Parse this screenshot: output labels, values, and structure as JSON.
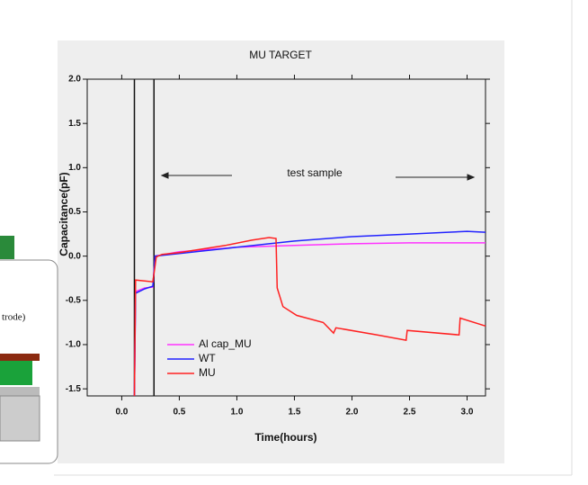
{
  "chart_data": {
    "type": "line",
    "title": "MU TARGET",
    "x_label": "Time(hours)",
    "y_label": "Capacitance(pF)",
    "annotation": "test sample",
    "vlines": [
      0.11,
      0.28
    ],
    "xlim": [
      -0.3,
      3.16
    ],
    "ylim": [
      -1.58,
      2.0
    ],
    "xticks": [
      {
        "value": 0,
        "label": "0.0"
      },
      0.5,
      {
        "value": 1,
        "label": "1.0"
      },
      1.5,
      {
        "value": 2,
        "label": "2.0"
      },
      2.5,
      {
        "value": 3,
        "label": "3.0"
      }
    ],
    "yticks": [
      {
        "value": -1.5,
        "label": "-1.5"
      },
      {
        "value": -1,
        "label": "-1.0"
      },
      {
        "value": -0.5,
        "label": "-0.5"
      },
      {
        "value": 0,
        "label": "0.0"
      },
      {
        "value": 0.5,
        "label": "0.5"
      },
      {
        "value": 1,
        "label": "1.0"
      },
      {
        "value": 1.5,
        "label": "1.5"
      },
      {
        "value": 2,
        "label": "2.0"
      }
    ],
    "series": [
      {
        "name": "Al cap_MU",
        "color": "#ff33ff",
        "x": [
          0.11,
          0.12,
          0.2,
          0.27,
          0.29,
          0.5,
          1.0,
          1.5,
          2.0,
          2.5,
          3.0,
          3.16
        ],
        "values": [
          -1.58,
          -0.4,
          -0.36,
          -0.35,
          0.0,
          0.05,
          0.1,
          0.12,
          0.14,
          0.15,
          0.15,
          0.15
        ]
      },
      {
        "name": "WT",
        "color": "#2222ff",
        "x": [
          0.11,
          0.12,
          0.2,
          0.27,
          0.29,
          0.5,
          1.0,
          1.5,
          2.0,
          2.5,
          3.0,
          3.16
        ],
        "values": [
          -1.58,
          -0.42,
          -0.37,
          -0.34,
          0.0,
          0.03,
          0.1,
          0.17,
          0.22,
          0.25,
          0.28,
          0.27
        ]
      },
      {
        "name": "MU",
        "color": "#ff2020",
        "x": [
          0.11,
          0.12,
          0.2,
          0.27,
          0.3,
          0.35,
          0.5,
          0.9,
          1.13,
          1.28,
          1.34,
          1.35,
          1.4,
          1.52,
          1.75,
          1.84,
          1.86,
          2.22,
          2.47,
          2.48,
          2.93,
          2.94,
          3.16
        ],
        "values": [
          -1.58,
          -0.27,
          -0.28,
          -0.29,
          -0.01,
          0.02,
          0.04,
          0.12,
          0.18,
          0.21,
          0.2,
          -0.36,
          -0.57,
          -0.67,
          -0.75,
          -0.87,
          -0.81,
          -0.89,
          -0.95,
          -0.84,
          -0.89,
          -0.7,
          -0.79
        ]
      }
    ]
  },
  "inset": {
    "text": "trode)"
  }
}
